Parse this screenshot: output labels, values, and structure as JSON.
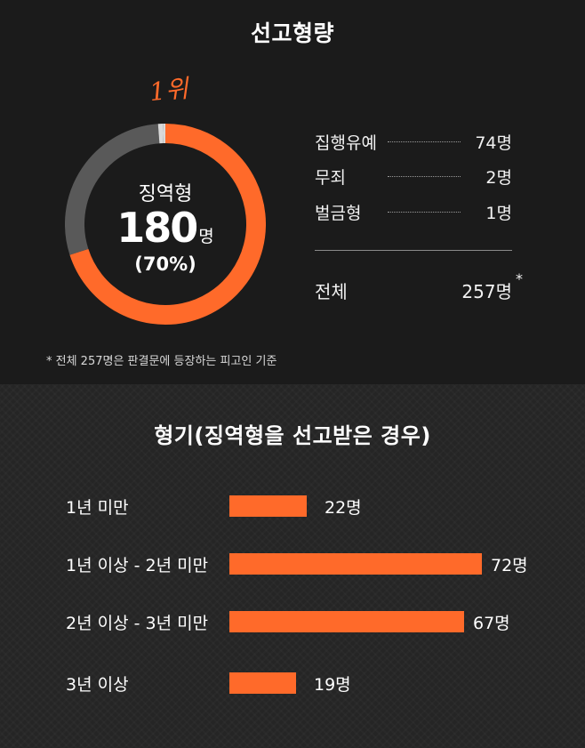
{
  "colors": {
    "accent": "#ff6a2a",
    "secondary": "#595959",
    "minor": "#d9d9d9"
  },
  "sentence": {
    "title": "선고형량",
    "rank_label": "1위",
    "center": {
      "label": "징역형",
      "value": "180",
      "unit": "명",
      "pct": "(70%)"
    },
    "legend": [
      {
        "name": "집행유예",
        "value": "74명"
      },
      {
        "name": "무죄",
        "value": "2명"
      },
      {
        "name": "벌금형",
        "value": "1명"
      }
    ],
    "total": {
      "label": "전체",
      "value": "257명",
      "star": "*"
    },
    "footnote": "* 전체 257명은 판결문에 등장하는 피고인 기준"
  },
  "term": {
    "title": "형기(징역형을 선고받은 경우)"
  },
  "chart_data": [
    {
      "type": "pie",
      "title": "선고형량",
      "categories": [
        "징역형",
        "집행유예",
        "무죄",
        "벌금형"
      ],
      "values": [
        180,
        74,
        2,
        1
      ],
      "total": 257
    },
    {
      "type": "bar",
      "title": "형기(징역형을 선고받은 경우)",
      "categories": [
        "1년 미만",
        "1년 이상 - 2년 미만",
        "2년 이상 - 3년 미만",
        "3년 이상"
      ],
      "values": [
        22,
        72,
        67,
        19
      ],
      "value_labels": [
        "22명",
        "72명",
        "67명",
        "19명"
      ],
      "orientation": "horizontal"
    }
  ]
}
